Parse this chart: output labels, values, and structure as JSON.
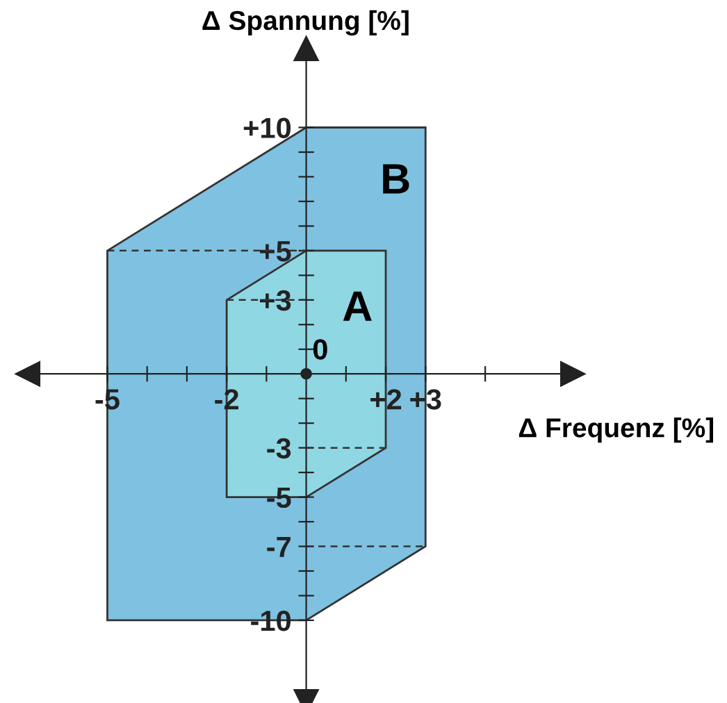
{
  "chart_data": {
    "type": "area",
    "xlabel": "Δ Frequenz [%]",
    "ylabel": "Δ Spannung [%]",
    "xlim": [
      -7,
      6.7
    ],
    "ylim": [
      -13.3,
      13.2
    ],
    "xticks": [
      {
        "value": -5,
        "label": "-5"
      },
      {
        "value": -4,
        "label": null
      },
      {
        "value": -3,
        "label": null
      },
      {
        "value": -2,
        "label": "-2"
      },
      {
        "value": -1,
        "label": null
      },
      {
        "value": 1,
        "label": null
      },
      {
        "value": 2,
        "label": "+2"
      },
      {
        "value": 3,
        "label": "+3"
      },
      {
        "value": 4.5,
        "label": null
      }
    ],
    "yticks": [
      {
        "value": 10,
        "label": "+10"
      },
      {
        "value": 9,
        "label": null
      },
      {
        "value": 8,
        "label": null
      },
      {
        "value": 7,
        "label": null
      },
      {
        "value": 6,
        "label": null
      },
      {
        "value": 5,
        "label": "+5"
      },
      {
        "value": 4,
        "label": null
      },
      {
        "value": 3,
        "label": "+3"
      },
      {
        "value": 2,
        "label": null
      },
      {
        "value": 1,
        "label": null
      },
      {
        "value": -1,
        "label": null
      },
      {
        "value": -2,
        "label": null
      },
      {
        "value": -3,
        "label": "-3"
      },
      {
        "value": -4,
        "label": null
      },
      {
        "value": -5,
        "label": "-5"
      },
      {
        "value": -6,
        "label": null
      },
      {
        "value": -7,
        "label": "-7"
      },
      {
        "value": -8,
        "label": null
      },
      {
        "value": -9,
        "label": null
      },
      {
        "value": -10,
        "label": "-10"
      }
    ],
    "series": [
      {
        "color": "#7fc1e0",
        "x": [
          -5,
          0,
          3,
          3,
          0,
          -5
        ],
        "values": [
          5,
          10,
          10,
          -7,
          -10,
          -10
        ]
      },
      {
        "color": "#8fd7e3",
        "x": [
          -2,
          0,
          2,
          2,
          0,
          -2
        ],
        "values": [
          3,
          5,
          5,
          -3,
          -5,
          -5
        ]
      },
      {
        "type": "line",
        "color": "#333333",
        "line_style": "dashed",
        "x": [
          -5,
          0
        ],
        "values": [
          5,
          5
        ]
      },
      {
        "type": "line",
        "color": "#333333",
        "line_style": "dashed",
        "x": [
          -2,
          0
        ],
        "values": [
          3,
          3
        ]
      },
      {
        "type": "line",
        "color": "#333333",
        "line_style": "dashed",
        "x": [
          0,
          2
        ],
        "values": [
          -3,
          -3
        ]
      },
      {
        "type": "line",
        "color": "#333333",
        "line_style": "dashed",
        "x": [
          0,
          3
        ],
        "values": [
          -7,
          -7
        ]
      }
    ],
    "annotations": [
      "A",
      "B",
      "0"
    ]
  }
}
